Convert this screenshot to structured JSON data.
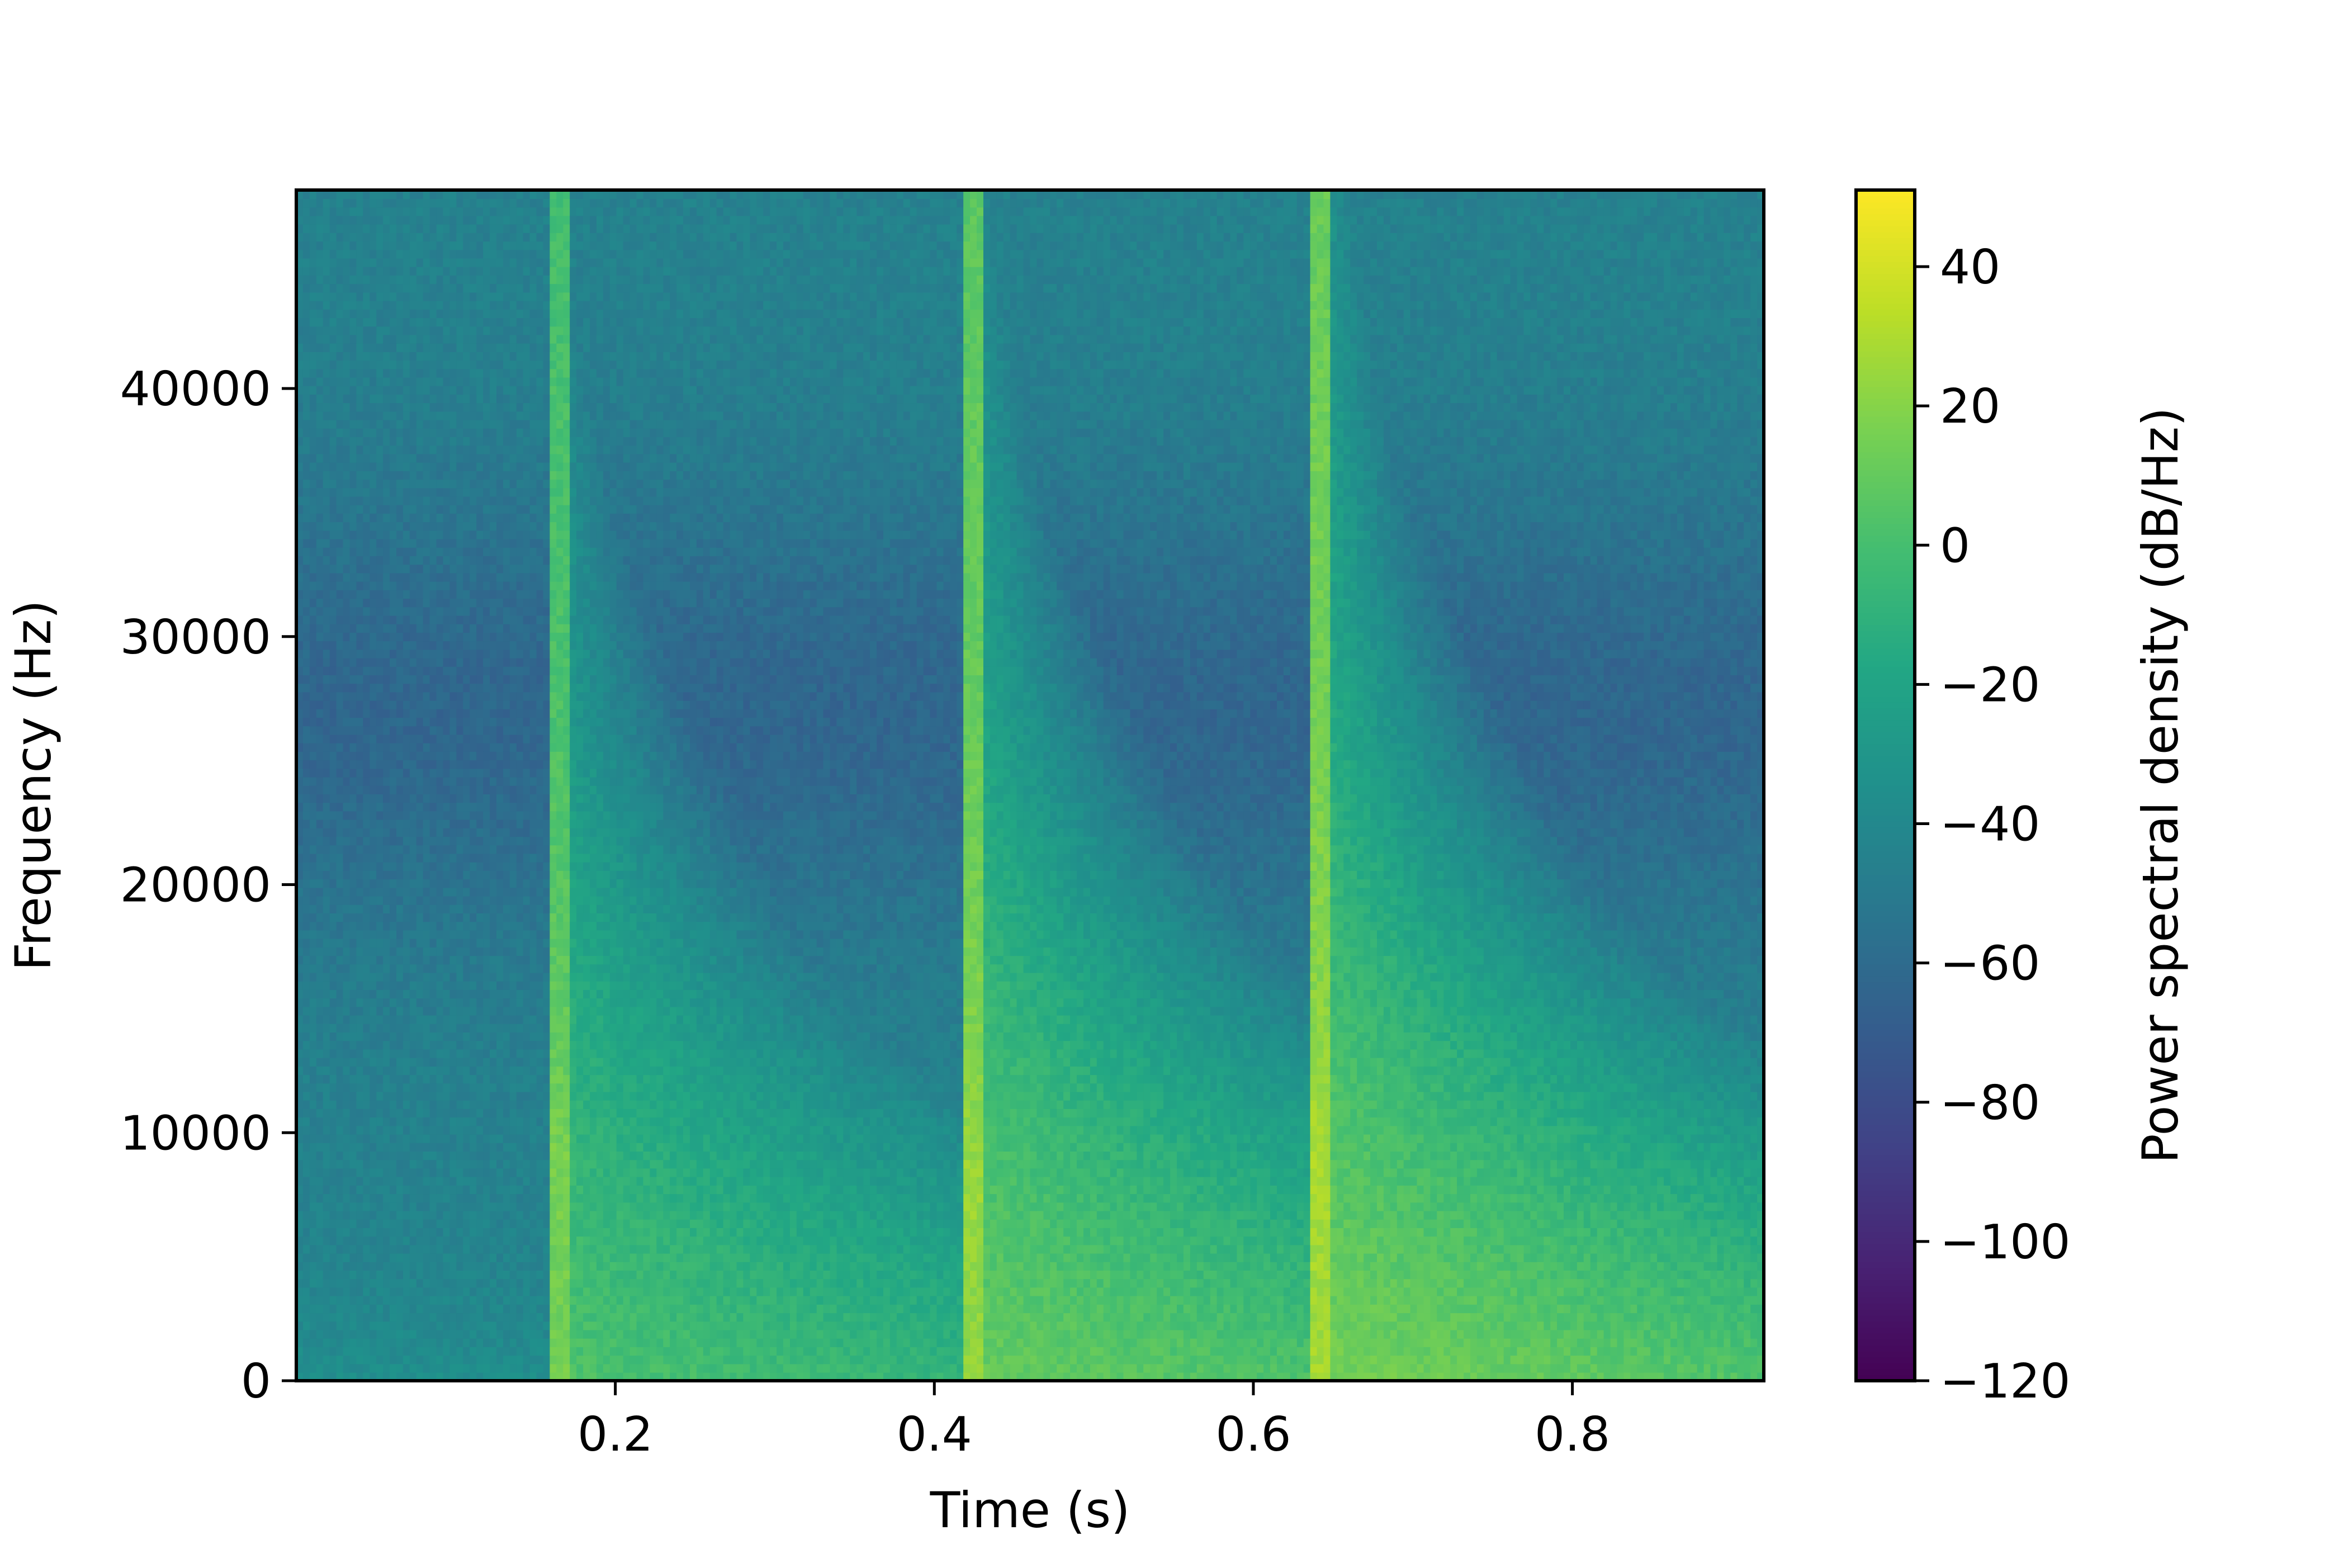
{
  "chart_data": {
    "type": "heatmap",
    "title": "",
    "xlabel": "Time (s)",
    "ylabel": "Frequency (Hz)",
    "xlim": [
      0.0,
      0.92
    ],
    "ylim": [
      0,
      48000
    ],
    "x_ticks": [
      {
        "value": 0.2,
        "label": "0.2"
      },
      {
        "value": 0.4,
        "label": "0.4"
      },
      {
        "value": 0.6,
        "label": "0.6"
      },
      {
        "value": 0.8,
        "label": "0.8"
      }
    ],
    "y_ticks": [
      {
        "value": 0,
        "label": "0"
      },
      {
        "value": 10000,
        "label": "10000"
      },
      {
        "value": 20000,
        "label": "20000"
      },
      {
        "value": 30000,
        "label": "30000"
      },
      {
        "value": 40000,
        "label": "40000"
      }
    ],
    "colormap": "viridis",
    "colorbar": {
      "label": "Power spectral density (dB/Hz)",
      "range": [
        -120,
        51
      ],
      "ticks": [
        {
          "value": 40,
          "label": "40"
        },
        {
          "value": 20,
          "label": "20"
        },
        {
          "value": 0,
          "label": "0"
        },
        {
          "value": -20,
          "label": "−20"
        },
        {
          "value": -40,
          "label": "−40"
        },
        {
          "value": -60,
          "label": "−60"
        },
        {
          "value": -80,
          "label": "−80"
        },
        {
          "value": -100,
          "label": "−100"
        },
        {
          "value": -120,
          "label": "−120"
        }
      ]
    },
    "background_level_db": -45,
    "transients": [
      {
        "time_s": 0.165,
        "peak_db": 30
      },
      {
        "time_s": 0.423,
        "peak_db": 40
      },
      {
        "time_s": 0.643,
        "peak_db": 45
      }
    ],
    "low_frequency_band": {
      "time_range_s": [
        0.45,
        0.92
      ],
      "freq_max_hz": 2500,
      "level_db": -5
    }
  }
}
